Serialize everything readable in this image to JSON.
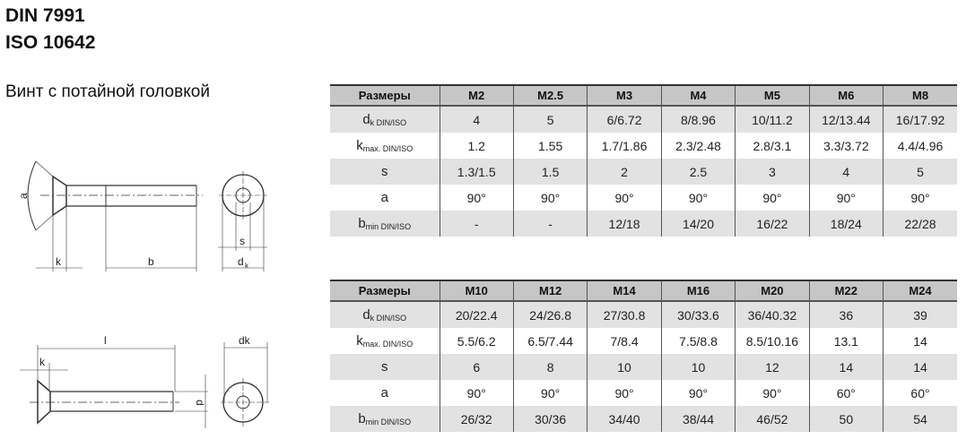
{
  "title_line1": "DIN 7991",
  "title_line2": "ISO 10642",
  "subtitle": "Винт с потайной головкой",
  "drawing_labels": {
    "a": "a",
    "k": "k",
    "b": "b",
    "s": "s",
    "dk": "d",
    "dk_sub": "k",
    "l": "l",
    "k2": "k",
    "dk2": "dk",
    "d": "d"
  },
  "tables": [
    {
      "header": [
        "Размеры",
        "M2",
        "M2.5",
        "M3",
        "M4",
        "M5",
        "M6",
        "M8"
      ],
      "rows": [
        {
          "label": "d",
          "sub": "k DIN/ISO",
          "values": [
            "4",
            "5",
            "6/6.72",
            "8/8.96",
            "10/11.2",
            "12/13.44",
            "16/17.92"
          ]
        },
        {
          "label": "k",
          "sub": "max. DIN/ISO",
          "values": [
            "1.2",
            "1.55",
            "1.7/1.86",
            "2.3/2.48",
            "2.8/3.1",
            "3.3/3.72",
            "4.4/4.96"
          ]
        },
        {
          "label": "s",
          "sub": "",
          "values": [
            "1.3/1.5",
            "1.5",
            "2",
            "2.5",
            "3",
            "4",
            "5"
          ]
        },
        {
          "label": "a",
          "sub": "",
          "values": [
            "90°",
            "90°",
            "90°",
            "90°",
            "90°",
            "90°",
            "90°"
          ]
        },
        {
          "label": "b",
          "sub": "min DIN/ISO",
          "values": [
            "-",
            "-",
            "12/18",
            "14/20",
            "16/22",
            "18/24",
            "22/28"
          ]
        }
      ]
    },
    {
      "header": [
        "Размеры",
        "M10",
        "M12",
        "M14",
        "M16",
        "M20",
        "M22",
        "M24"
      ],
      "rows": [
        {
          "label": "d",
          "sub": "k DIN/ISO",
          "values": [
            "20/22.4",
            "24/26.8",
            "27/30.8",
            "30/33.6",
            "36/40.32",
            "36",
            "39"
          ]
        },
        {
          "label": "k",
          "sub": "max. DIN/ISO",
          "values": [
            "5.5/6.2",
            "6.5/7.44",
            "7/8.4",
            "7.5/8.8",
            "8.5/10.16",
            "13.1",
            "14"
          ]
        },
        {
          "label": "s",
          "sub": "",
          "values": [
            "6",
            "8",
            "10",
            "10",
            "12",
            "14",
            "14"
          ]
        },
        {
          "label": "a",
          "sub": "",
          "values": [
            "90°",
            "90°",
            "90°",
            "90°",
            "90°",
            "60°",
            "60°"
          ]
        },
        {
          "label": "b",
          "sub": "min DIN/ISO",
          "values": [
            "26/32",
            "30/36",
            "34/40",
            "38/44",
            "46/52",
            "50",
            "54"
          ]
        }
      ]
    }
  ]
}
